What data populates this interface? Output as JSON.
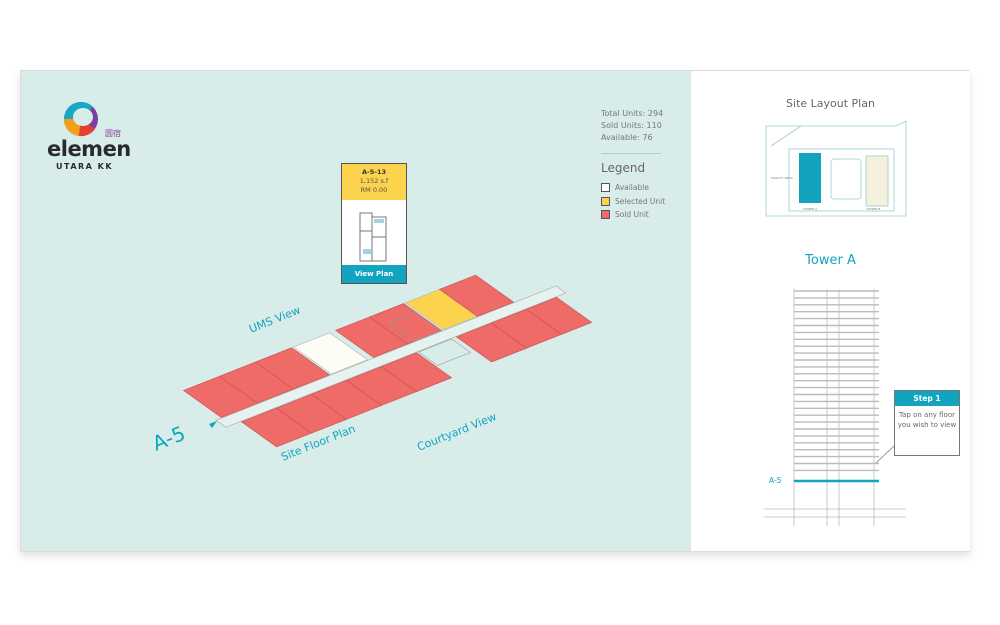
{
  "brand": {
    "name": "elemen",
    "sub": "UTARA KK",
    "chinese": "圆宿"
  },
  "stats": {
    "total": "Total Units: 294",
    "sold": "Sold Units: 110",
    "available": "Available: 76"
  },
  "legend": {
    "title": "Legend",
    "items": [
      {
        "label": "Available",
        "color": "#ffffff"
      },
      {
        "label": "Selected Unit",
        "color": "#fcd34d"
      },
      {
        "label": "Sold Unit",
        "color": "#ef6b68"
      }
    ]
  },
  "colors": {
    "available": "#fdfdf5",
    "selected": "#fcd34d",
    "sold": "#ef6b68",
    "accent": "#12a4bf",
    "background": "#d8edea"
  },
  "unit_card": {
    "id": "A-5-13",
    "size": "1,152 s.f",
    "price": "RM 0.00",
    "button": "View Plan"
  },
  "floor_plan": {
    "floor": "A-5",
    "labels": {
      "ums": "UMS View",
      "site": "Site Floor Plan",
      "courtyard": "Courtyard View"
    },
    "units": [
      "sold",
      "sold",
      "sold",
      "available",
      "sold",
      "sold",
      "selected",
      "sold",
      "sold",
      "sold",
      "sold",
      "sold",
      "sold",
      "sold",
      "sold",
      "sold"
    ]
  },
  "site_layout": {
    "title": "Site Layout Plan",
    "facility": "FACILITY DECK",
    "tower_a": "TOWER A",
    "tower_b": "TOWER B"
  },
  "tower": {
    "title": "Tower A",
    "floor_label": "A-5",
    "selected_floor_progress": 0.12
  },
  "callout": {
    "title": "Step 1",
    "text": "Tap on any floor you wish to view"
  }
}
